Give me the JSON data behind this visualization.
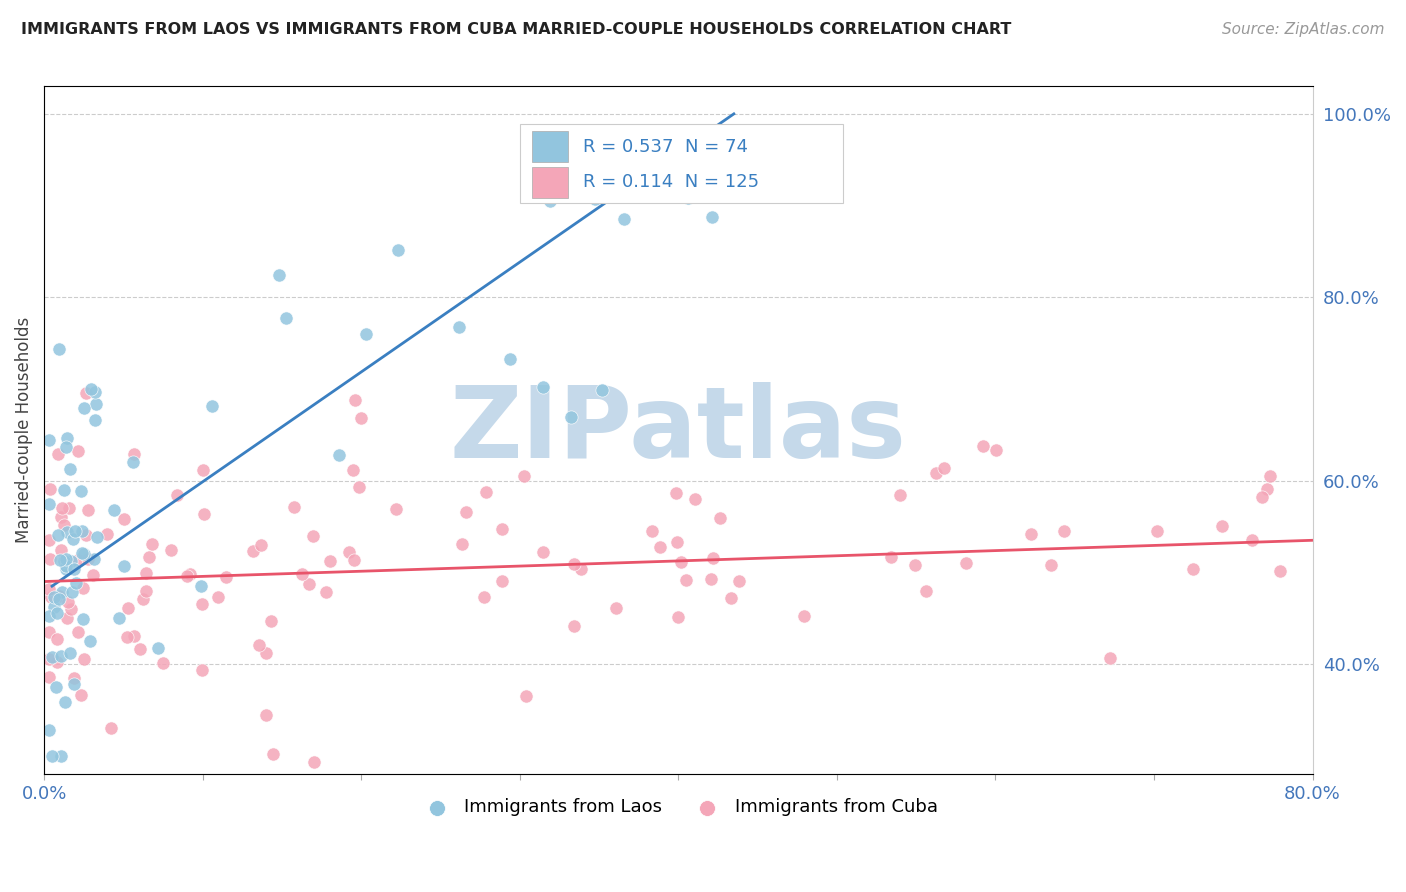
{
  "title": "IMMIGRANTS FROM LAOS VS IMMIGRANTS FROM CUBA MARRIED-COUPLE HOUSEHOLDS CORRELATION CHART",
  "source": "Source: ZipAtlas.com",
  "ylabel": "Married-couple Households",
  "xlim": [
    0.0,
    0.8
  ],
  "ylim": [
    0.28,
    1.03
  ],
  "x_ticks": [
    0.0,
    0.1,
    0.2,
    0.3,
    0.4,
    0.5,
    0.6,
    0.7,
    0.8
  ],
  "x_tick_labels": [
    "0.0%",
    "",
    "",
    "",
    "",
    "",
    "",
    "",
    "80.0%"
  ],
  "y_ticks": [
    0.4,
    0.6,
    0.8,
    1.0
  ],
  "y_tick_labels": [
    "40.0%",
    "60.0%",
    "80.0%",
    "100.0%"
  ],
  "laos_R": 0.537,
  "laos_N": 74,
  "cuba_R": 0.114,
  "cuba_N": 125,
  "laos_color": "#92c5de",
  "cuba_color": "#f4a6b8",
  "laos_line_color": "#3a7fc1",
  "cuba_line_color": "#e8546a",
  "laos_line_x0": 0.005,
  "laos_line_y0": 0.485,
  "laos_line_x1": 0.435,
  "laos_line_y1": 1.0,
  "cuba_line_x0": 0.0,
  "cuba_line_y0": 0.49,
  "cuba_line_x1": 0.8,
  "cuba_line_y1": 0.535,
  "watermark_text": "ZIPatlas",
  "watermark_color": "#c5d9ea",
  "background_color": "#ffffff",
  "legend_R_color": "#3a7fc1",
  "legend_N_color": "#3a7fc1"
}
